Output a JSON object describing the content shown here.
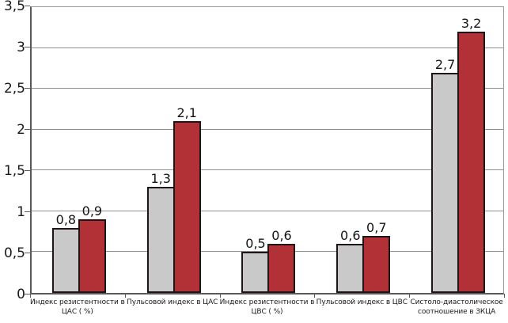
{
  "chart_data": {
    "type": "bar",
    "title": "",
    "xlabel": "",
    "ylabel": "",
    "grid": true,
    "legend": "none",
    "categories": [
      [
        "Индекс резистентности в",
        "ЦАС ( %)"
      ],
      [
        "Пульсовой индекс в ЦАС"
      ],
      [
        "Индекс резистентности в",
        "ЦВС ( %)"
      ],
      [
        "Пульсовой индекс в ЦВС"
      ],
      [
        "Систоло-диастолическое",
        "соотношение в ЗКЦА"
      ]
    ],
    "series": [
      {
        "name": "series-gray",
        "color": "#c9c9c9",
        "values": [
          0.8,
          1.3,
          0.5,
          0.6,
          2.7
        ],
        "labels": [
          "0,8",
          "1,3",
          "0,5",
          "0,6",
          "2,7"
        ]
      },
      {
        "name": "series-red",
        "color": "#b23136",
        "values": [
          0.9,
          2.1,
          0.6,
          0.7,
          3.2
        ],
        "labels": [
          "0,9",
          "2,1",
          "0,6",
          "0,7",
          "3,2"
        ]
      }
    ],
    "y_axis": {
      "ylim": [
        0,
        3.5
      ],
      "tick_values": [
        0,
        0.5,
        1,
        1.5,
        2,
        2.5,
        3,
        3.5
      ],
      "tick_labels": [
        "0",
        "0,5",
        "1",
        "1,5",
        "2",
        "2,5",
        "3",
        "3,5"
      ]
    },
    "colors": {
      "bar_border": "#1f1416",
      "gridline": "#8f8f8f",
      "axis": "#5a5a5a",
      "background": "#ffffff",
      "text": "#1a1a1a"
    }
  }
}
